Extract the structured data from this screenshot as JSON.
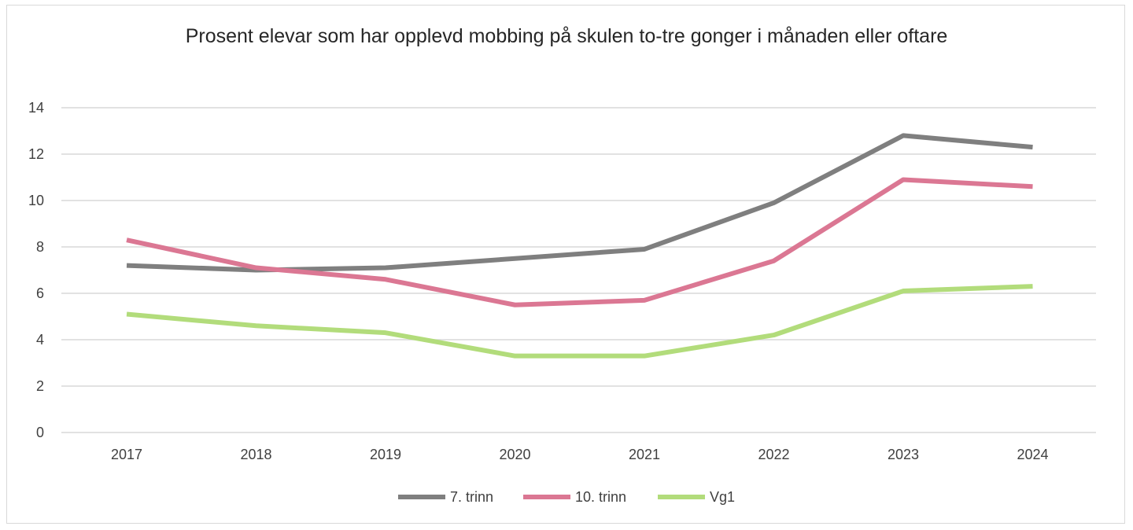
{
  "chart_data": {
    "type": "line",
    "title": "Prosent elevar som har opplevd mobbing på skulen to-tre gonger i månaden eller oftare",
    "xlabel": "",
    "ylabel": "",
    "categories": [
      "2017",
      "2018",
      "2019",
      "2020",
      "2021",
      "2022",
      "2023",
      "2024"
    ],
    "ylim": [
      0,
      14
    ],
    "yticks": [
      0,
      2,
      4,
      6,
      8,
      10,
      12,
      14
    ],
    "grid": true,
    "legend": "bottom",
    "series": [
      {
        "name": "7. trinn",
        "color": "#7f7f7f",
        "values": [
          7.2,
          7.0,
          7.1,
          7.5,
          7.9,
          9.9,
          12.8,
          12.3
        ]
      },
      {
        "name": "10. trinn",
        "color": "#db7793",
        "values": [
          8.3,
          7.1,
          6.6,
          5.5,
          5.7,
          7.4,
          10.9,
          10.6
        ]
      },
      {
        "name": "Vg1",
        "color": "#b2dc7b",
        "values": [
          5.1,
          4.6,
          4.3,
          3.3,
          3.3,
          4.2,
          6.1,
          6.3
        ]
      }
    ]
  }
}
